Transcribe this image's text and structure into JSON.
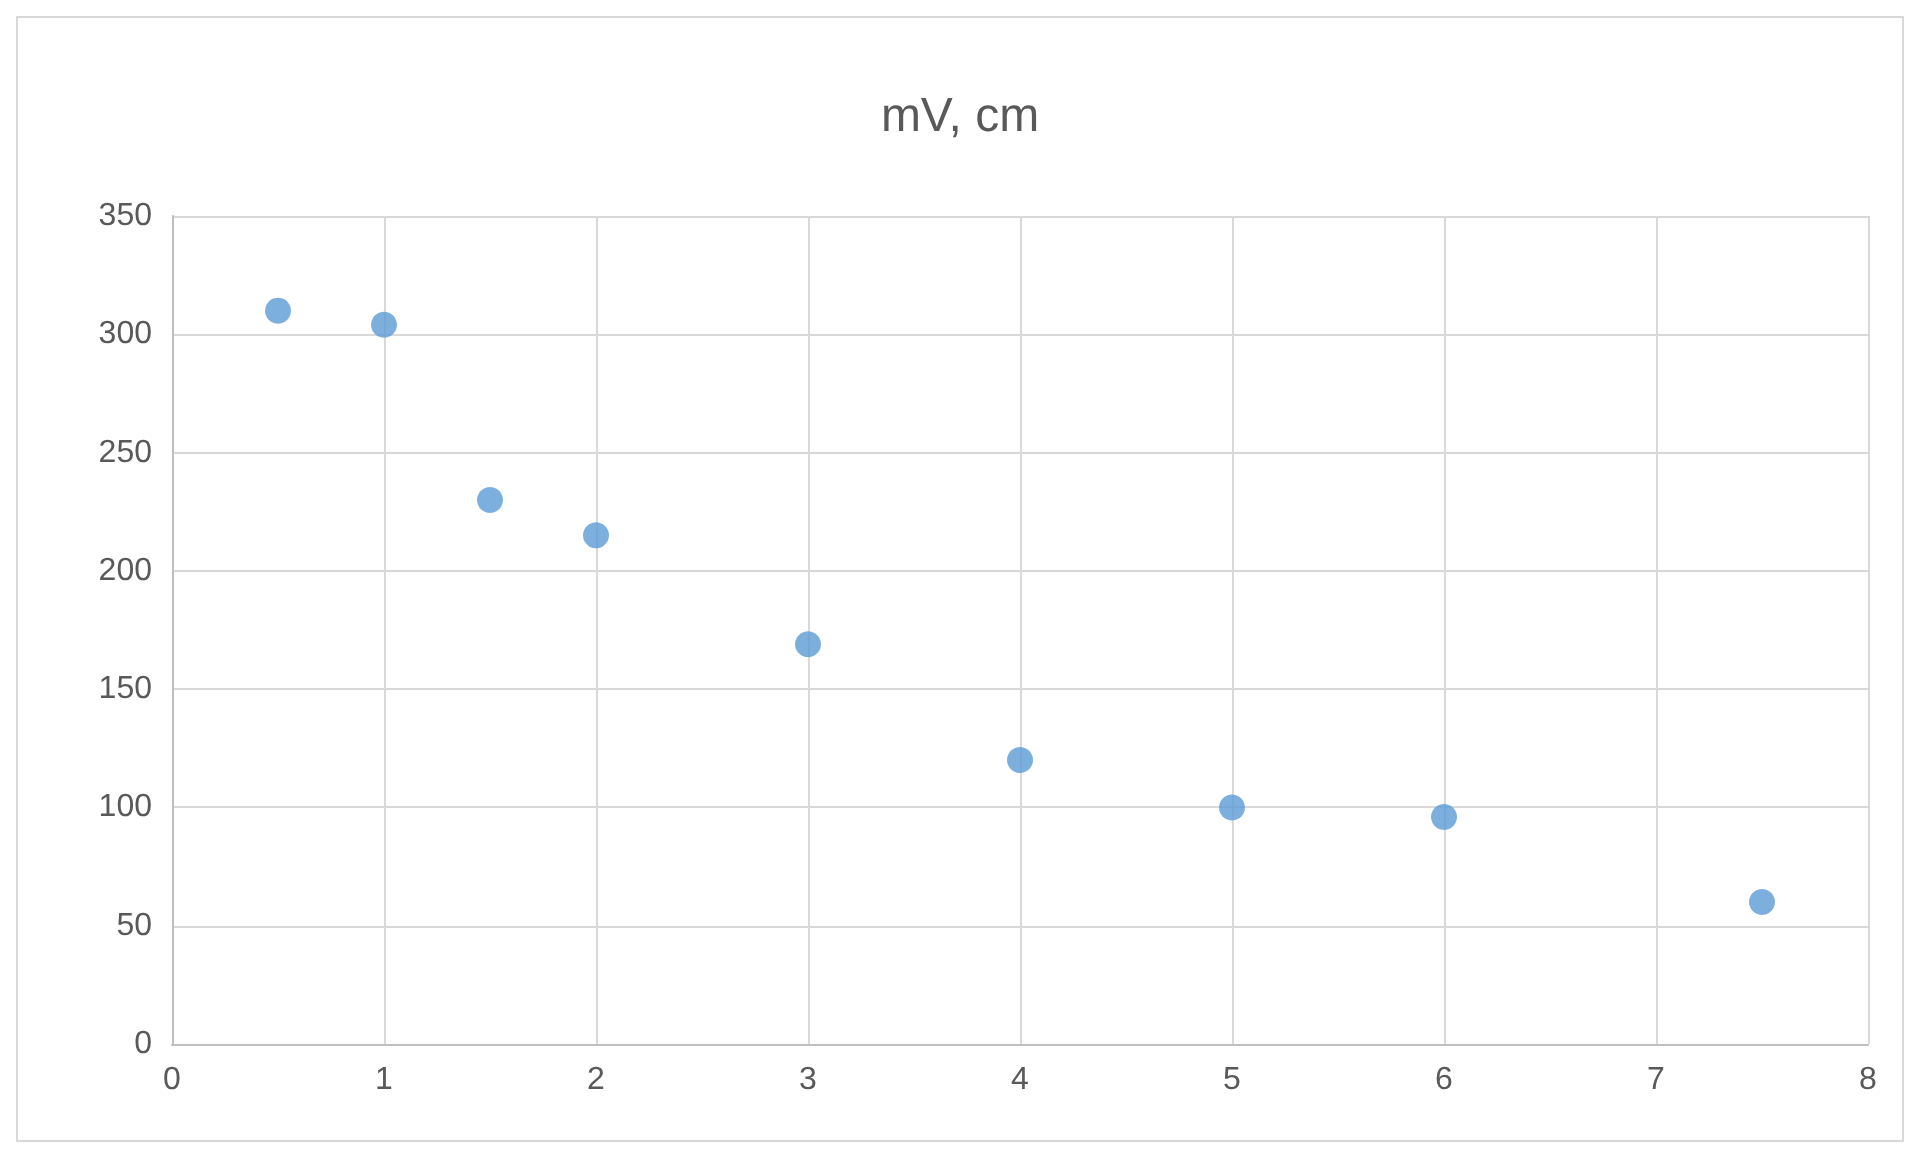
{
  "chart_data": {
    "type": "scatter",
    "title": "mV, cm",
    "x": [
      0.5,
      1,
      1.5,
      2,
      3,
      4,
      5,
      6,
      7.5
    ],
    "series": [
      {
        "color": "#5b9bd5",
        "values": [
          310,
          304,
          230,
          215,
          169,
          120,
          100,
          96,
          60
        ]
      }
    ],
    "xlim": [
      0,
      8
    ],
    "xticks": [
      0,
      1,
      2,
      3,
      4,
      5,
      6,
      7,
      8
    ],
    "ylim": [
      0,
      350
    ],
    "yticks": [
      0,
      50,
      100,
      150,
      200,
      250,
      300,
      350
    ],
    "grid": true,
    "marker": "circle"
  }
}
